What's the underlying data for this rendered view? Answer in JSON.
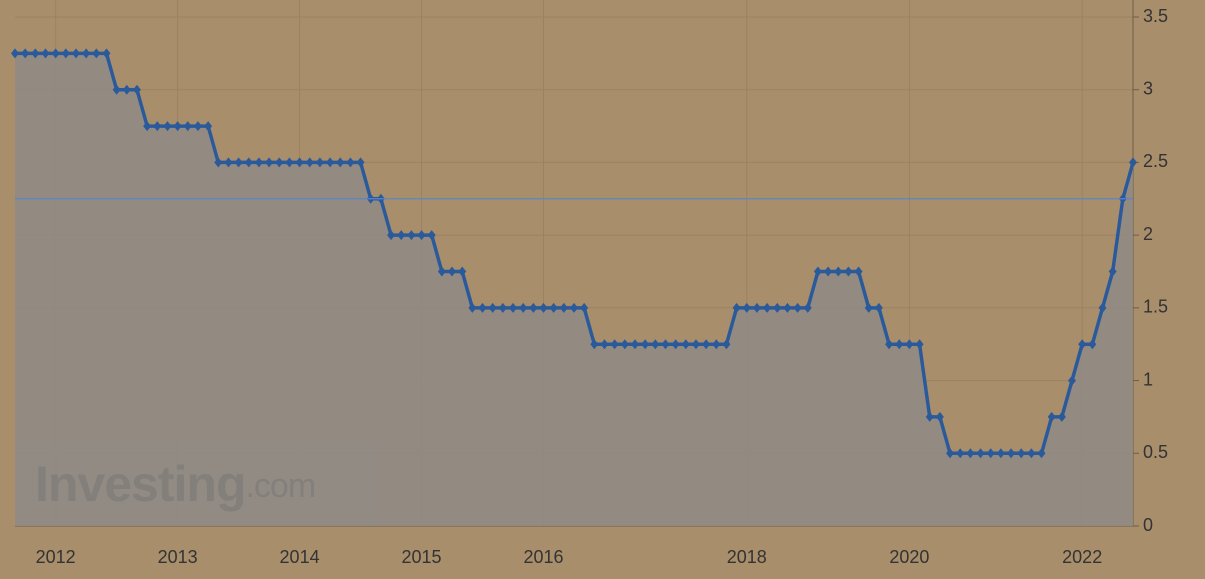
{
  "chart_data": {
    "type": "line",
    "categories": [
      null,
      null,
      null,
      null,
      "2012",
      null,
      null,
      null,
      null,
      null,
      null,
      null,
      null,
      null,
      null,
      null,
      "2013",
      null,
      null,
      null,
      null,
      null,
      null,
      null,
      null,
      null,
      null,
      null,
      "2014",
      null,
      null,
      null,
      null,
      null,
      null,
      null,
      null,
      null,
      null,
      null,
      "2015",
      null,
      null,
      null,
      null,
      null,
      null,
      null,
      null,
      null,
      null,
      null,
      "2016",
      null,
      null,
      null,
      null,
      null,
      null,
      null,
      null,
      null,
      null,
      null,
      null,
      null,
      null,
      null,
      null,
      null,
      null,
      null,
      "2018",
      null,
      null,
      null,
      null,
      null,
      null,
      null,
      null,
      null,
      null,
      null,
      null,
      null,
      null,
      null,
      "2020",
      null,
      null,
      null,
      null,
      null,
      null,
      null,
      null,
      null,
      null,
      null,
      null,
      null,
      null,
      null,
      null,
      "2022",
      null,
      null,
      null,
      null,
      null
    ],
    "series": [
      {
        "color": "#2b5a9b",
        "values": [
          3.25,
          3.25,
          3.25,
          3.25,
          3.25,
          3.25,
          3.25,
          3.25,
          3.25,
          3.25,
          3,
          3,
          3,
          2.75,
          2.75,
          2.75,
          2.75,
          2.75,
          2.75,
          2.75,
          2.5,
          2.5,
          2.5,
          2.5,
          2.5,
          2.5,
          2.5,
          2.5,
          2.5,
          2.5,
          2.5,
          2.5,
          2.5,
          2.5,
          2.5,
          2.25,
          2.25,
          2,
          2,
          2,
          2,
          2,
          1.75,
          1.75,
          1.75,
          1.5,
          1.5,
          1.5,
          1.5,
          1.5,
          1.5,
          1.5,
          1.5,
          1.5,
          1.5,
          1.5,
          1.5,
          1.25,
          1.25,
          1.25,
          1.25,
          1.25,
          1.25,
          1.25,
          1.25,
          1.25,
          1.25,
          1.25,
          1.25,
          1.25,
          1.25,
          1.5,
          1.5,
          1.5,
          1.5,
          1.5,
          1.5,
          1.5,
          1.5,
          1.75,
          1.75,
          1.75,
          1.75,
          1.75,
          1.5,
          1.5,
          1.25,
          1.25,
          1.25,
          1.25,
          0.75,
          0.75,
          0.5,
          0.5,
          0.5,
          0.5,
          0.5,
          0.5,
          0.5,
          0.5,
          0.5,
          0.5,
          0.75,
          0.75,
          1,
          1.25,
          1.25,
          1.5,
          1.75,
          2.25,
          2.5
        ]
      }
    ],
    "reference_line": 2.25,
    "ylim": [
      0,
      3.5
    ],
    "yticks": [
      0,
      0.5,
      1,
      1.5,
      2,
      2.5,
      3,
      3.5
    ],
    "grid": true,
    "watermark": {
      "name": "Investing",
      "suffix": ".com"
    }
  }
}
